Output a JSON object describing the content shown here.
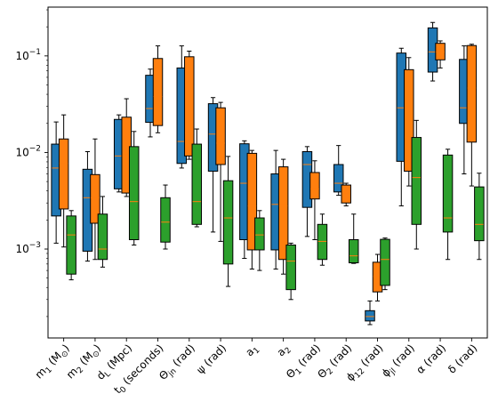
{
  "chart_data": {
    "type": "box",
    "y_scale": "log",
    "ylim": [
      0.00012,
      0.32
    ],
    "y_ticks": [
      {
        "value": 0.001,
        "base": "10",
        "exp": "−3"
      },
      {
        "value": 0.01,
        "base": "10",
        "exp": "−2"
      },
      {
        "value": 0.1,
        "base": "10",
        "exp": "−1"
      }
    ],
    "grid": false,
    "legend": "none",
    "categories": [
      {
        "main": "m",
        "sub": "1",
        "rest": " (M",
        "sub2": "⊙",
        "end": ")"
      },
      {
        "main": "m",
        "sub": "2",
        "rest": " (M",
        "sub2": "⊙",
        "end": ")"
      },
      {
        "main": "d",
        "sub": "L",
        "rest": " (Mpc)",
        "sub2": "",
        "end": ""
      },
      {
        "main": "t",
        "sub": "0",
        "rest": " (seconds)",
        "sub2": "",
        "end": ""
      },
      {
        "main": "Θ",
        "sub": "jn",
        "rest": " (rad)",
        "sub2": "",
        "end": ""
      },
      {
        "main": "ψ",
        "sub": "",
        "rest": " (rad)",
        "sub2": "",
        "end": ""
      },
      {
        "main": "a",
        "sub": "1",
        "rest": "",
        "sub2": "",
        "end": ""
      },
      {
        "main": "a",
        "sub": "2",
        "rest": "",
        "sub2": "",
        "end": ""
      },
      {
        "main": "Θ",
        "sub": "1",
        "rest": " (rad)",
        "sub2": "",
        "end": ""
      },
      {
        "main": "Θ",
        "sub": "2",
        "rest": " (rad)",
        "sub2": "",
        "end": ""
      },
      {
        "main": "ϕ",
        "sub": "12",
        "rest": " (rad)",
        "sub2": "",
        "end": ""
      },
      {
        "main": "ϕ",
        "sub": "jl",
        "rest": " (rad)",
        "sub2": "",
        "end": ""
      },
      {
        "main": "α",
        "sub": "",
        "rest": " (rad)",
        "sub2": "",
        "end": ""
      },
      {
        "main": "δ",
        "sub": "",
        "rest": " (rad)",
        "sub2": "",
        "end": ""
      }
    ],
    "series": [
      {
        "color": "#1f77b4",
        "boxes": [
          {
            "min": 0.00115,
            "q1": 0.0022,
            "median": 0.0069,
            "q3": 0.0122,
            "max": 0.0207
          },
          {
            "min": 0.00075,
            "q1": 0.00095,
            "median": 0.0034,
            "q3": 0.0067,
            "max": 0.0102
          },
          {
            "min": 0.0039,
            "q1": 0.0042,
            "median": 0.0092,
            "q3": 0.022,
            "max": 0.0245
          },
          {
            "min": 0.0145,
            "q1": 0.0205,
            "median": 0.0285,
            "q3": 0.063,
            "max": 0.073
          },
          {
            "min": 0.0069,
            "q1": 0.0077,
            "median": 0.013,
            "q3": 0.075,
            "max": 0.127
          },
          {
            "min": 0.0015,
            "q1": 0.0064,
            "median": 0.0155,
            "q3": 0.032,
            "max": 0.037
          },
          {
            "min": 0.0008,
            "q1": 0.00125,
            "median": 0.0048,
            "q3": 0.0123,
            "max": 0.0132
          },
          {
            "min": 0.00062,
            "q1": 0.00098,
            "median": 0.0029,
            "q3": 0.006,
            "max": 0.0105
          },
          {
            "min": 0.00135,
            "q1": 0.0027,
            "median": 0.0075,
            "q3": 0.0102,
            "max": 0.0115
          },
          {
            "min": 0.0036,
            "q1": 0.0039,
            "median": 0.0048,
            "q3": 0.0075,
            "max": 0.0118
          },
          {
            "min": 0.000165,
            "q1": 0.00018,
            "median": 0.0002,
            "q3": 0.00023,
            "max": 0.00029
          },
          {
            "min": 0.0028,
            "q1": 0.0081,
            "median": 0.029,
            "q3": 0.107,
            "max": 0.12
          },
          {
            "min": 0.055,
            "q1": 0.068,
            "median": 0.11,
            "q3": 0.195,
            "max": 0.222
          },
          {
            "min": 0.006,
            "q1": 0.02,
            "median": 0.029,
            "q3": 0.092,
            "max": 0.127
          }
        ]
      },
      {
        "color": "#ff7f0e",
        "boxes": [
          {
            "min": 0.00105,
            "q1": 0.0026,
            "median": 0.0077,
            "q3": 0.0138,
            "max": 0.0245
          },
          {
            "min": 0.00078,
            "q1": 0.00185,
            "median": 0.0034,
            "q3": 0.0059,
            "max": 0.0138
          },
          {
            "min": 0.0035,
            "q1": 0.0038,
            "median": 0.0095,
            "q3": 0.0232,
            "max": 0.036
          },
          {
            "min": 0.016,
            "q1": 0.019,
            "median": 0.038,
            "q3": 0.094,
            "max": 0.127
          },
          {
            "min": 0.0085,
            "q1": 0.0092,
            "median": 0.016,
            "q3": 0.098,
            "max": 0.112
          },
          {
            "min": 0.0012,
            "q1": 0.0075,
            "median": 0.0125,
            "q3": 0.029,
            "max": 0.033
          },
          {
            "min": 0.00062,
            "q1": 0.00098,
            "median": 0.0028,
            "q3": 0.0098,
            "max": 0.0105
          },
          {
            "min": 0.00055,
            "q1": 0.00078,
            "median": 0.0028,
            "q3": 0.0071,
            "max": 0.0085
          },
          {
            "min": 0.00125,
            "q1": 0.0033,
            "median": 0.0042,
            "q3": 0.0062,
            "max": 0.0082
          },
          {
            "min": 0.0028,
            "q1": 0.003,
            "median": 0.0038,
            "q3": 0.0046,
            "max": 0.0048
          },
          {
            "min": 0.00029,
            "q1": 0.00036,
            "median": 0.00052,
            "q3": 0.00073,
            "max": 0.00088
          },
          {
            "min": 0.0045,
            "q1": 0.0064,
            "median": 0.0145,
            "q3": 0.072,
            "max": 0.096
          },
          {
            "min": 0.075,
            "q1": 0.091,
            "median": 0.11,
            "q3": 0.135,
            "max": 0.143
          },
          {
            "min": 0.0045,
            "q1": 0.0128,
            "median": 0.0465,
            "q3": 0.128,
            "max": 0.132
          }
        ]
      },
      {
        "color": "#2ca02c",
        "boxes": [
          {
            "min": 0.00048,
            "q1": 0.00055,
            "median": 0.0014,
            "q3": 0.0022,
            "max": 0.0025
          },
          {
            "min": 0.00065,
            "q1": 0.00078,
            "median": 0.001,
            "q3": 0.0023,
            "max": 0.0035
          },
          {
            "min": 0.0011,
            "q1": 0.00125,
            "median": 0.0031,
            "q3": 0.0115,
            "max": 0.0165
          },
          {
            "min": 0.001,
            "q1": 0.00118,
            "median": 0.0019,
            "q3": 0.0034,
            "max": 0.0046
          },
          {
            "min": 0.0017,
            "q1": 0.0018,
            "median": 0.0031,
            "q3": 0.0122,
            "max": 0.0175
          },
          {
            "min": 0.00041,
            "q1": 0.0007,
            "median": 0.0021,
            "q3": 0.0051,
            "max": 0.0091
          },
          {
            "min": 0.0006,
            "q1": 0.00098,
            "median": 0.0014,
            "q3": 0.0021,
            "max": 0.0025
          },
          {
            "min": 0.0003,
            "q1": 0.00038,
            "median": 0.00075,
            "q3": 0.0011,
            "max": 0.00115
          },
          {
            "min": 0.00068,
            "q1": 0.00078,
            "median": 0.0012,
            "q3": 0.0018,
            "max": 0.0023
          },
          {
            "min": 0.00071,
            "q1": 0.00072,
            "median": 0.00085,
            "q3": 0.00125,
            "max": 0.0023
          },
          {
            "min": 0.00038,
            "q1": 0.00042,
            "median": 0.00078,
            "q3": 0.00126,
            "max": 0.0013
          },
          {
            "min": 0.001,
            "q1": 0.0018,
            "median": 0.0055,
            "q3": 0.0143,
            "max": 0.0215
          },
          {
            "min": 0.00078,
            "q1": 0.0015,
            "median": 0.0021,
            "q3": 0.0094,
            "max": 0.0108
          },
          {
            "min": 0.00078,
            "q1": 0.00122,
            "median": 0.0018,
            "q3": 0.0044,
            "max": 0.0061
          }
        ]
      }
    ]
  }
}
